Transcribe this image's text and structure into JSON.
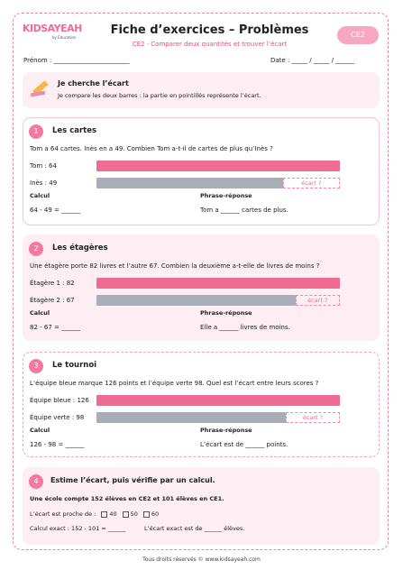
{
  "header": {
    "logo": "KIDSAYEAH",
    "logo_sub": "by Education",
    "title": "Fiche d’exercices – Problèmes",
    "subtitle": "CE2 · Comparer deux quantités et trouver l’écart",
    "level": "CE2",
    "name_field": "Prénom : ________________________",
    "date_field": "Date : _____ / _____ / ______"
  },
  "intro": {
    "title": "Je cherche l’écart",
    "text": "Je compare les deux barres : la partie en pointillés représente l’écart."
  },
  "exercises": [
    {
      "number": "1",
      "title": "Les cartes",
      "question": "Tom a 64 cartes. Inès en a 49. Combien Tom a-t-il de cartes de plus qu’Inès ?",
      "bars": [
        {
          "label": "Tom : 64",
          "value": 64
        },
        {
          "label": "Inès : 49",
          "value": 49
        }
      ],
      "gap_label": "écart ?",
      "calc_label": "Calcul",
      "calc": "64 - 49 = ______",
      "answer_label": "Phrase-réponse",
      "answer": "Tom a ______ cartes de plus."
    },
    {
      "number": "2",
      "title": "Les étagères",
      "question": "Une étagère porte 82 livres et l’autre 67. Combien la deuxième a-t-elle de livres de moins ?",
      "bars": [
        {
          "label": "Étagère 1 : 82",
          "value": 82
        },
        {
          "label": "Étagère 2 : 67",
          "value": 67
        }
      ],
      "gap_label": "écart ?",
      "calc_label": "Calcul",
      "calc": "82 - 67 = ______",
      "answer_label": "Phrase-réponse",
      "answer": "Elle a ______ livres de moins."
    },
    {
      "number": "3",
      "title": "Le tournoi",
      "question": "L’équipe bleue marque 126 points et l’équipe verte 98. Quel est l’écart entre leurs scores ?",
      "bars": [
        {
          "label": "Équipe bleue : 126",
          "value": 126
        },
        {
          "label": "Équipe verte : 98",
          "value": 98
        }
      ],
      "gap_label": "écart ?",
      "calc_label": "Calcul",
      "calc": "126 - 98 = ______",
      "answer_label": "Phrase-réponse",
      "answer": "L’écart est de ______ points."
    }
  ],
  "estimate": {
    "number": "4",
    "title": "Estime l’écart, puis vérifie par un calcul.",
    "question": "Une école compte 152 élèves en CE2 et 101 élèves en CE1.",
    "prompt": "L’écart est proche de :",
    "options": [
      "40",
      "50",
      "60"
    ],
    "exact": "Calcul exact : 152 - 101 = ______",
    "exact_answer": "L’écart exact est de ______ élèves."
  },
  "footer": "Tous droits réservés © www.kidsayeah.com"
}
